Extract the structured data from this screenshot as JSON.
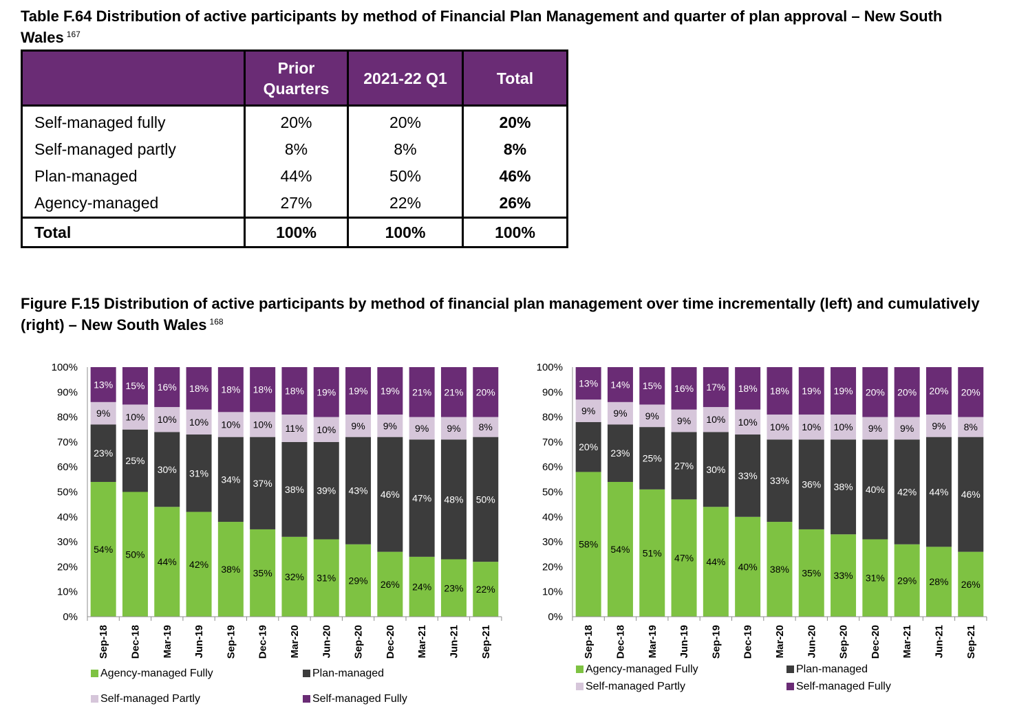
{
  "table_title": "Table F.64 Distribution of active participants by method of Financial Plan Management and quarter of plan approval – New South Wales",
  "table_footnote": "167",
  "table": {
    "headers": [
      "",
      "Prior Quarters",
      "2021-22 Q1",
      "Total"
    ],
    "rows": [
      {
        "label": "Self-managed fully",
        "values": [
          "20%",
          "20%",
          "20%"
        ]
      },
      {
        "label": "Self-managed partly",
        "values": [
          "8%",
          "8%",
          "8%"
        ]
      },
      {
        "label": "Plan-managed",
        "values": [
          "44%",
          "50%",
          "46%"
        ]
      },
      {
        "label": "Agency-managed",
        "values": [
          "27%",
          "22%",
          "26%"
        ]
      }
    ],
    "total": {
      "label": "Total",
      "values": [
        "100%",
        "100%",
        "100%"
      ]
    }
  },
  "figure_title": "Figure F.15 Distribution of active participants by method of financial plan management over time incrementally (left) and cumulatively (right) – New South Wales",
  "figure_footnote": "168",
  "colors": {
    "header_bg": "#6a2c75",
    "Agency-managed Fully": "#7ec242",
    "Plan-managed": "#3c3c3c",
    "Self-managed Partly": "#d6c6da",
    "Self-managed Fully": "#6a2c75"
  },
  "chart_data": [
    {
      "type": "bar",
      "stacked": true,
      "title": "",
      "xlabel": "",
      "ylabel": "",
      "ylim": [
        0,
        100
      ],
      "yticks": [
        "0%",
        "10%",
        "20%",
        "30%",
        "40%",
        "50%",
        "60%",
        "70%",
        "80%",
        "90%",
        "100%"
      ],
      "legend_position": "bottom",
      "categories": [
        "Sep-18",
        "Dec-18",
        "Mar-19",
        "Jun-19",
        "Sep-19",
        "Dec-19",
        "Mar-20",
        "Jun-20",
        "Sep-20",
        "Dec-20",
        "Mar-21",
        "Jun-21",
        "Sep-21"
      ],
      "series": [
        {
          "name": "Agency-managed Fully",
          "values": [
            54,
            50,
            44,
            42,
            38,
            35,
            32,
            31,
            29,
            26,
            24,
            23,
            22
          ]
        },
        {
          "name": "Plan-managed",
          "values": [
            23,
            25,
            30,
            31,
            34,
            37,
            38,
            39,
            43,
            46,
            47,
            48,
            50
          ]
        },
        {
          "name": "Self-managed Partly",
          "values": [
            9,
            10,
            10,
            10,
            10,
            10,
            11,
            10,
            9,
            9,
            9,
            9,
            8
          ]
        },
        {
          "name": "Self-managed Fully",
          "values": [
            13,
            15,
            16,
            18,
            18,
            18,
            18,
            19,
            19,
            19,
            21,
            21,
            20
          ]
        }
      ]
    },
    {
      "type": "bar",
      "stacked": true,
      "title": "",
      "xlabel": "",
      "ylabel": "",
      "ylim": [
        0,
        100
      ],
      "yticks": [
        "0%",
        "10%",
        "20%",
        "30%",
        "40%",
        "50%",
        "60%",
        "70%",
        "80%",
        "90%",
        "100%"
      ],
      "legend_position": "bottom",
      "categories": [
        "Sep-18",
        "Dec-18",
        "Mar-19",
        "Jun-19",
        "Sep-19",
        "Dec-19",
        "Mar-20",
        "Jun-20",
        "Sep-20",
        "Dec-20",
        "Mar-21",
        "Jun-21",
        "Sep-21"
      ],
      "series": [
        {
          "name": "Agency-managed Fully",
          "values": [
            58,
            54,
            51,
            47,
            44,
            40,
            38,
            35,
            33,
            31,
            29,
            28,
            26
          ]
        },
        {
          "name": "Plan-managed",
          "values": [
            20,
            23,
            25,
            27,
            30,
            33,
            33,
            36,
            38,
            40,
            42,
            44,
            46
          ]
        },
        {
          "name": "Self-managed Partly",
          "values": [
            9,
            9,
            9,
            9,
            10,
            10,
            10,
            10,
            10,
            9,
            9,
            9,
            8
          ]
        },
        {
          "name": "Self-managed Fully",
          "values": [
            13,
            14,
            15,
            16,
            17,
            18,
            18,
            19,
            19,
            20,
            20,
            20,
            20
          ]
        }
      ]
    }
  ]
}
